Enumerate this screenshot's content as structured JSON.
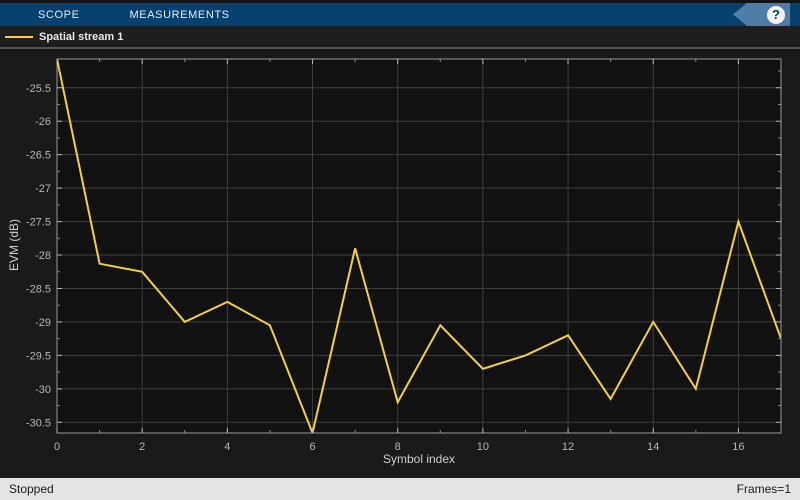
{
  "toolbar": {
    "tabs": [
      {
        "label": "SCOPE"
      },
      {
        "label": "MEASUREMENTS"
      }
    ],
    "help_label": "?",
    "bg_color": "#05406e",
    "help_tag_color": "#4f7ca8"
  },
  "legend": {
    "series_label": "Spatial stream 1",
    "line_color": "#f3cf45"
  },
  "status_bar": {
    "left": "Stopped",
    "right": "Frames=1"
  },
  "chart_data": {
    "type": "line",
    "title": "",
    "xlabel": "Symbol index",
    "ylabel": "EVM (dB)",
    "x": [
      0,
      1,
      2,
      3,
      4,
      5,
      6,
      7,
      8,
      9,
      10,
      11,
      12,
      13,
      14,
      15,
      16,
      17
    ],
    "series": [
      {
        "name": "Spatial stream 1",
        "color": "#f3cf45",
        "values": [
          -25.07,
          -28.13,
          -28.25,
          -29.0,
          -28.7,
          -29.05,
          -30.66,
          -27.9,
          -30.2,
          -29.05,
          -29.7,
          -29.5,
          -29.2,
          -30.15,
          -29.0,
          -30.0,
          -27.5,
          -29.25
        ]
      }
    ],
    "xlim": [
      0,
      17
    ],
    "ylim": [
      -30.66,
      -25.07
    ],
    "xticks": [
      0,
      2,
      4,
      6,
      8,
      10,
      12,
      14,
      16
    ],
    "x_minor_ticks": [
      1,
      3,
      5,
      7,
      9,
      11,
      13,
      15,
      17
    ],
    "yticks": [
      -25.5,
      -26,
      -26.5,
      -27,
      -27.5,
      -28,
      -28.5,
      -29,
      -29.5,
      -30,
      -30.5
    ],
    "y_minor_ticks": [
      -25.25,
      -25.75,
      -26.25,
      -26.75,
      -27.25,
      -27.75,
      -28.25,
      -28.75,
      -29.25,
      -29.75,
      -30.25
    ],
    "grid": true,
    "legend_position": "top-left",
    "theme": {
      "axes_bg": "#111111",
      "grid_color": "#3e3e3e",
      "spine_color": "#9a9a9a",
      "tick_color": "#b5b5b5",
      "minor_tick_color": "#8a8a8a",
      "tick_label_color": "#b5b5b5"
    }
  }
}
